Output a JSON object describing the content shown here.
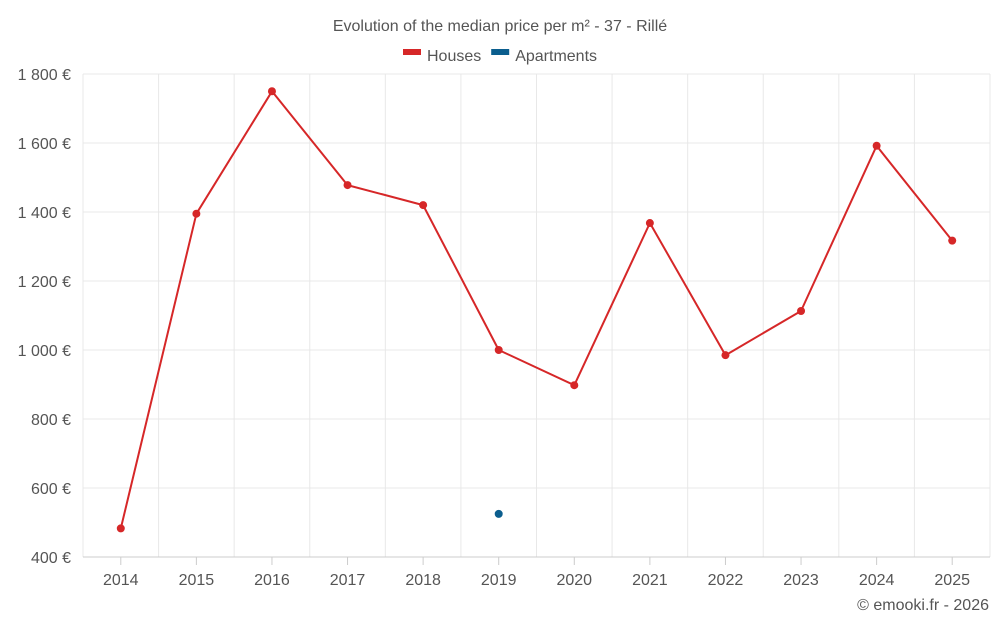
{
  "chart_data": {
    "type": "line",
    "title": "Evolution of the median price per m² - 37 - Rillé",
    "categories": [
      "2014",
      "2015",
      "2016",
      "2017",
      "2018",
      "2019",
      "2020",
      "2021",
      "2022",
      "2023",
      "2024",
      "2025"
    ],
    "series": [
      {
        "name": "Houses",
        "color": "#d62728",
        "values": [
          483,
          1395,
          1750,
          1478,
          1420,
          1000,
          898,
          1368,
          985,
          1113,
          1592,
          1317
        ]
      },
      {
        "name": "Apartments",
        "color": "#0b5e8e",
        "values": [
          null,
          null,
          null,
          null,
          null,
          525,
          null,
          null,
          null,
          null,
          null,
          null
        ]
      }
    ],
    "ylim": [
      400,
      1800
    ],
    "yticks": [
      400,
      600,
      800,
      1000,
      1200,
      1400,
      1600,
      1800
    ],
    "ytick_labels": [
      "400 €",
      "600 €",
      "800 €",
      "1 000 €",
      "1 200 €",
      "1 400 €",
      "1 600 €",
      "1 800 €"
    ],
    "xlabel": "",
    "ylabel": "",
    "legend_position": "top-center",
    "grid": true
  },
  "credit": "© emooki.fr - 2026"
}
